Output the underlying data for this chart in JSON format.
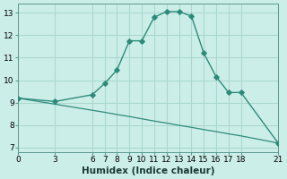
{
  "title": "",
  "xlabel": "Humidex (Indice chaleur)",
  "bg_color": "#cceee8",
  "grid_color": "#aad8d0",
  "line_color": "#2e8b7a",
  "upper_x": [
    0,
    3,
    6,
    7,
    8,
    9,
    10,
    11,
    12,
    13,
    14,
    15,
    16,
    17,
    18,
    21
  ],
  "upper_y": [
    9.2,
    9.05,
    9.35,
    9.85,
    10.45,
    11.75,
    11.75,
    12.8,
    13.05,
    13.05,
    12.85,
    11.2,
    10.15,
    9.45,
    9.45,
    7.2
  ],
  "lower_x": [
    0,
    3,
    6,
    7,
    8,
    9,
    10,
    11,
    12,
    13,
    14,
    15,
    16,
    17,
    18,
    21
  ],
  "lower_y": [
    9.2,
    8.93,
    8.66,
    8.57,
    8.47,
    8.38,
    8.28,
    8.18,
    8.09,
    7.99,
    7.9,
    7.8,
    7.71,
    7.61,
    7.52,
    7.2
  ],
  "xticks": [
    0,
    3,
    6,
    7,
    8,
    9,
    10,
    11,
    12,
    13,
    14,
    15,
    16,
    17,
    18,
    21
  ],
  "yticks": [
    7,
    8,
    9,
    10,
    11,
    12,
    13
  ],
  "xlim": [
    0,
    21
  ],
  "ylim": [
    6.8,
    13.4
  ],
  "tick_fontsize": 6.5,
  "xlabel_fontsize": 7.5
}
